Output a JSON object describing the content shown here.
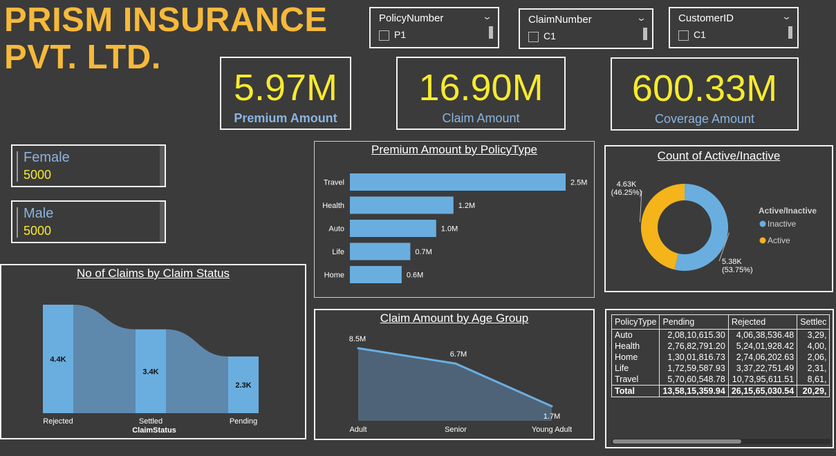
{
  "header": {
    "title_line1": "PRISM INSURANCE",
    "title_line2": "PVT. LTD."
  },
  "slicers": [
    {
      "label": "PolicyNumber",
      "value": "P1"
    },
    {
      "label": "ClaimNumber",
      "value": "C1"
    },
    {
      "label": "CustomerID",
      "value": "C1"
    }
  ],
  "kpis": [
    {
      "value": "5.97M",
      "label": "Premium Amount"
    },
    {
      "value": "16.90M",
      "label": "Claim Amount"
    },
    {
      "value": "600.33M",
      "label": "Coverage Amount"
    }
  ],
  "gender_cards": [
    {
      "label": "Female",
      "value": "5000"
    },
    {
      "label": "Male",
      "value": "5000"
    }
  ],
  "colors": {
    "title": "#f6b93b",
    "kpi_value": "#f7ea2e",
    "kpi_label": "#8ab4e0",
    "bar": "#6aaee0",
    "active": "#f4b41a",
    "inactive": "#6aaee0"
  },
  "chart_data": [
    {
      "type": "bar",
      "title": "Premium Amount by PolicyType",
      "orientation": "horizontal",
      "categories": [
        "Travel",
        "Health",
        "Auto",
        "Life",
        "Home"
      ],
      "values": [
        2.5,
        1.2,
        1.0,
        0.7,
        0.6
      ],
      "value_labels": [
        "2.5M",
        "1.2M",
        "1.0M",
        "0.7M",
        "0.6M"
      ],
      "unit": "M"
    },
    {
      "type": "pie",
      "variant": "donut",
      "title": "Count of Active/Inactive",
      "legend_title": "Active/Inactive",
      "legend_position": "right",
      "slices": [
        {
          "name": "Inactive",
          "value": 5380,
          "label": "5.38K",
          "pct": "(53.75%)"
        },
        {
          "name": "Active",
          "value": 4630,
          "label": "4.63K",
          "pct": "(46.25%)"
        }
      ]
    },
    {
      "type": "bar",
      "variant": "ribbon",
      "title": "No of Claims by Claim Status",
      "xlabel": "ClaimStatus",
      "categories": [
        "Rejected",
        "Settled",
        "Pending"
      ],
      "values": [
        4.4,
        3.4,
        2.3
      ],
      "value_labels": [
        "4.4K",
        "3.4K",
        "2.3K"
      ],
      "unit": "K"
    },
    {
      "type": "area",
      "title": "Claim Amount by Age Group",
      "categories": [
        "Adult",
        "Senior",
        "Young Adult"
      ],
      "values": [
        8.5,
        6.7,
        1.7
      ],
      "value_labels": [
        "8.5M",
        "6.7M",
        "1.7M"
      ],
      "unit": "M"
    }
  ],
  "matrix": {
    "columns": [
      "PolicyType",
      "Pending",
      "Rejected",
      "Settlec"
    ],
    "rows": [
      [
        "Auto",
        "2,08,10,615.30",
        "4,06,38,536.48",
        "3,29,"
      ],
      [
        "Health",
        "2,76,82,791.20",
        "5,24,01,928.42",
        "4,00,"
      ],
      [
        "Home",
        "1,30,01,816.73",
        "2,74,06,202.63",
        "2,06,"
      ],
      [
        "Life",
        "1,72,59,587.93",
        "3,37,22,751.49",
        "2,31,"
      ],
      [
        "Travel",
        "5,70,60,548.78",
        "10,73,95,611.51",
        "8,61,"
      ]
    ],
    "total": [
      "Total",
      "13,58,15,359.94",
      "26,15,65,030.54",
      "20,29,"
    ]
  }
}
